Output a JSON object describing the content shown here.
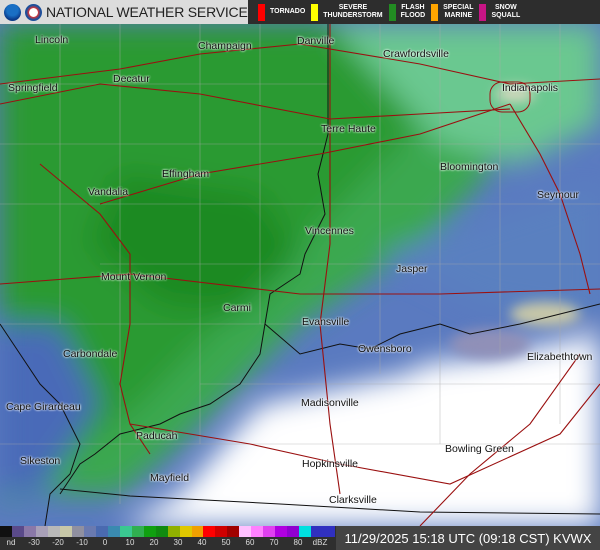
{
  "header": {
    "title": "NATIONAL WEATHER SERVICE",
    "logos": [
      "noaa-logo",
      "nws-logo"
    ],
    "warnings": [
      {
        "label": "TORNADO",
        "color": "#ff0000"
      },
      {
        "label": "SEVERE\nTHUNDERSTORM",
        "color": "#ffff00"
      },
      {
        "label": "FLASH\nFLOOD",
        "color": "#228b22"
      },
      {
        "label": "SPECIAL\nMARINE",
        "color": "#ffa500"
      },
      {
        "label": "SNOW\nSQUALL",
        "color": "#c71585"
      }
    ]
  },
  "map": {
    "cities": [
      {
        "name": "Lincoln"
      },
      {
        "name": "Champaign"
      },
      {
        "name": "Danville"
      },
      {
        "name": "Crawfordsville"
      },
      {
        "name": "Springfield"
      },
      {
        "name": "Decatur"
      },
      {
        "name": "Indianapolis"
      },
      {
        "name": "Terre Haute"
      },
      {
        "name": "Bloomington"
      },
      {
        "name": "Effingham"
      },
      {
        "name": "Vandalia"
      },
      {
        "name": "Seymour"
      },
      {
        "name": "Vincennes"
      },
      {
        "name": "Jasper"
      },
      {
        "name": "Mount Vernon"
      },
      {
        "name": "Carmi"
      },
      {
        "name": "Evansville"
      },
      {
        "name": "Owensboro"
      },
      {
        "name": "Elizabethtown"
      },
      {
        "name": "Carbondale"
      },
      {
        "name": "Madisonville"
      },
      {
        "name": "Cape Girardeau"
      },
      {
        "name": "Paducah"
      },
      {
        "name": "Bowling Green"
      },
      {
        "name": "Hopkinsville"
      },
      {
        "name": "Sikeston"
      },
      {
        "name": "Mayfield"
      },
      {
        "name": "Clarksville"
      }
    ]
  },
  "legend": {
    "colors": [
      "#111111",
      "#5a4a8a",
      "#8a78a8",
      "#a8a0b8",
      "#b8b8b8",
      "#c8c8a8",
      "#9090a0",
      "#6a7ab0",
      "#4a6ab0",
      "#3a8ab0",
      "#3ac890",
      "#30b050",
      "#10a010",
      "#108a10",
      "#90b000",
      "#e0c800",
      "#f0a000",
      "#ff0000",
      "#d00000",
      "#a00000",
      "#ffc0ff",
      "#ff80ff",
      "#e040f0",
      "#b000e0",
      "#9000d0",
      "#00e0e0",
      "#3030c0",
      "#3030c0"
    ],
    "ticks": [
      "nd",
      "-30",
      "-20",
      "-10",
      "0",
      "10",
      "20",
      "30",
      "40",
      "50",
      "60",
      "70",
      "80",
      "dBZ"
    ]
  },
  "footer": {
    "timestamp": "11/29/2025 15:18 UTC (09:18 CST) KVWX"
  }
}
